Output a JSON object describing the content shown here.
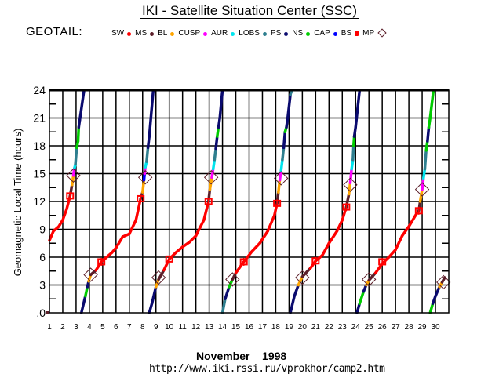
{
  "header": {
    "title": "IKI - Satellite Situation Center (SSC)",
    "satellite_label": "GEOTAIL:"
  },
  "legend": [
    {
      "label": "SW",
      "color": "#ff0000",
      "marker": "dot"
    },
    {
      "label": "MS",
      "color": "#5c1f2a",
      "marker": "dot"
    },
    {
      "label": "BL",
      "color": "#ffa500",
      "marker": "dot"
    },
    {
      "label": "CUSP",
      "color": "#ff00ff",
      "marker": "dot"
    },
    {
      "label": "AUR",
      "color": "#00e5ee",
      "marker": "dot"
    },
    {
      "label": "LOBS",
      "color": "#2f7f8f",
      "marker": "dot"
    },
    {
      "label": "PS",
      "color": "#0a0a6e",
      "marker": "dot"
    },
    {
      "label": "NS",
      "color": "#00cc00",
      "marker": "dot"
    },
    {
      "label": "CAP",
      "color": "#0000ff",
      "marker": "dot"
    },
    {
      "label": "BS",
      "color": "#ff0000",
      "marker": "square-cross"
    },
    {
      "label": "MP",
      "color": "#5c1f2a",
      "marker": "diamond"
    }
  ],
  "footer": {
    "month": "November",
    "year": "1998",
    "url": "http://www.iki.rssi.ru/vprokhor/camp2.htm"
  },
  "chart_data": {
    "type": "line",
    "title": "IKI - Satellite Situation Center (SSC)",
    "xlabel": "November 1998",
    "ylabel": "Geomagnetic Local Time (hours)",
    "xlim": [
      1,
      31
    ],
    "ylim": [
      0,
      24
    ],
    "x_ticks": [
      "1",
      "2",
      "3",
      "4",
      "5",
      "6",
      "7",
      "8",
      "9",
      "10",
      "11",
      "12",
      "13",
      "14",
      "15",
      "16",
      "17",
      "18",
      "19",
      "20",
      "21",
      "22",
      "23",
      "24",
      "25",
      "26",
      "27",
      "28",
      "29",
      "30"
    ],
    "y_ticks": [
      ".0",
      "3",
      "6",
      "9",
      "12",
      "15",
      "18",
      "21",
      "24"
    ],
    "y_tick_values": [
      0,
      3,
      6,
      9,
      12,
      15,
      18,
      21,
      24
    ],
    "grid": true,
    "legend_position": "top",
    "orbits": [
      {
        "name": "orbit-1",
        "path": [
          [
            1.0,
            7.8,
            "SW"
          ],
          [
            1.3,
            8.8,
            "SW"
          ],
          [
            1.7,
            9.3,
            "SW"
          ],
          [
            2.0,
            10.0,
            "SW"
          ],
          [
            2.3,
            11.2,
            "SW"
          ],
          [
            2.55,
            12.6,
            "SW"
          ],
          [
            2.7,
            13.8,
            "MS"
          ],
          [
            2.8,
            14.8,
            "BL"
          ],
          [
            2.88,
            15.6,
            "CUSP"
          ],
          [
            2.95,
            16.0,
            "AUR"
          ],
          [
            3.05,
            17.8,
            "LOBS"
          ],
          [
            3.15,
            18.5,
            "NS"
          ],
          [
            3.2,
            20.0,
            "NS"
          ],
          [
            3.28,
            20.8,
            "PS"
          ],
          [
            3.6,
            24.0,
            "PS"
          ]
        ],
        "bs": [
          [
            2.55,
            12.6
          ]
        ],
        "mp": [
          [
            2.8,
            14.8
          ]
        ]
      },
      {
        "name": "orbit-1b",
        "path": [
          [
            3.4,
            0.0,
            "PS"
          ],
          [
            3.7,
            1.8,
            "PS"
          ],
          [
            3.85,
            2.8,
            "NS"
          ],
          [
            3.95,
            3.4,
            "PS"
          ],
          [
            4.1,
            4.1,
            "BL"
          ],
          [
            4.5,
            4.6,
            "MS"
          ],
          [
            4.9,
            5.5,
            "SW"
          ],
          [
            5.3,
            6.0,
            "SW"
          ],
          [
            5.7,
            6.5,
            "SW"
          ],
          [
            6.0,
            7.0,
            "SW"
          ],
          [
            6.5,
            8.2,
            "SW"
          ],
          [
            7.0,
            8.5,
            "SW"
          ],
          [
            7.5,
            10.0,
            "SW"
          ],
          [
            7.85,
            12.3,
            "SW"
          ],
          [
            8.0,
            13.0,
            "MS"
          ],
          [
            8.1,
            14.3,
            "BL"
          ],
          [
            8.15,
            15.0,
            "CAP"
          ],
          [
            8.2,
            15.7,
            "CUSP"
          ],
          [
            8.3,
            16.3,
            "AUR"
          ],
          [
            8.4,
            17.8,
            "LOBS"
          ],
          [
            8.5,
            19.0,
            "PS"
          ],
          [
            8.8,
            24.0,
            "PS"
          ]
        ],
        "bs": [
          [
            4.9,
            5.5
          ],
          [
            7.85,
            12.3
          ]
        ],
        "mp": [
          [
            4.1,
            4.1
          ],
          [
            8.2,
            14.6
          ]
        ]
      },
      {
        "name": "orbit-2b",
        "path": [
          [
            8.5,
            0.0,
            "NS"
          ],
          [
            8.7,
            1.0,
            "PS"
          ],
          [
            9.0,
            2.8,
            "PS"
          ],
          [
            9.2,
            3.6,
            "BL"
          ],
          [
            9.6,
            4.6,
            "MS"
          ],
          [
            10.0,
            5.8,
            "SW"
          ],
          [
            10.5,
            6.5,
            "SW"
          ],
          [
            11.0,
            7.1,
            "SW"
          ],
          [
            11.5,
            7.6,
            "SW"
          ],
          [
            12.0,
            8.3,
            "SW"
          ],
          [
            12.6,
            10.0,
            "SW"
          ],
          [
            12.95,
            12.0,
            "SW"
          ],
          [
            13.05,
            13.3,
            "MS"
          ],
          [
            13.2,
            14.6,
            "BL"
          ],
          [
            13.3,
            15.5,
            "CUSP"
          ],
          [
            13.4,
            16.5,
            "AUR"
          ],
          [
            13.5,
            17.7,
            "LOBS"
          ],
          [
            13.6,
            19.0,
            "PS"
          ],
          [
            13.7,
            20.0,
            "NS"
          ],
          [
            13.8,
            21.0,
            "PS"
          ],
          [
            14.0,
            24.0,
            "PS"
          ]
        ],
        "bs": [
          [
            10.0,
            5.8
          ],
          [
            12.95,
            12.0
          ]
        ],
        "mp": [
          [
            9.2,
            3.8
          ],
          [
            13.15,
            14.6
          ]
        ]
      },
      {
        "name": "orbit-3b",
        "path": [
          [
            14.0,
            0.0,
            "LOBS"
          ],
          [
            14.2,
            1.5,
            "LOBS"
          ],
          [
            14.5,
            2.8,
            "PS"
          ],
          [
            14.75,
            3.6,
            "NS"
          ],
          [
            15.0,
            4.3,
            "MS"
          ],
          [
            15.6,
            5.5,
            "SW"
          ],
          [
            16.2,
            6.6,
            "SW"
          ],
          [
            16.8,
            7.5,
            "SW"
          ],
          [
            17.4,
            8.8,
            "SW"
          ],
          [
            17.9,
            10.5,
            "SW"
          ],
          [
            18.1,
            11.8,
            "SW"
          ],
          [
            18.2,
            13.0,
            "MS"
          ],
          [
            18.3,
            14.3,
            "BL"
          ],
          [
            18.4,
            15.3,
            "CUSP"
          ],
          [
            18.5,
            16.5,
            "AUR"
          ],
          [
            18.6,
            17.8,
            "LOBS"
          ],
          [
            18.7,
            19.5,
            "PS"
          ],
          [
            18.8,
            20.0,
            "NS"
          ],
          [
            18.9,
            21.0,
            "PS"
          ],
          [
            19.1,
            23.5,
            "PS"
          ],
          [
            19.2,
            24.0,
            "LOBS"
          ]
        ],
        "bs": [
          [
            15.6,
            5.5
          ],
          [
            18.1,
            11.8
          ]
        ],
        "mp": [
          [
            14.75,
            3.6
          ],
          [
            18.4,
            14.5
          ]
        ]
      },
      {
        "name": "orbit-4b",
        "path": [
          [
            19.1,
            0.0,
            "LOBS"
          ],
          [
            19.4,
            1.8,
            "PS"
          ],
          [
            19.7,
            3.0,
            "PS"
          ],
          [
            20.0,
            3.9,
            "BL"
          ],
          [
            20.6,
            4.8,
            "MS"
          ],
          [
            21.0,
            5.6,
            "SW"
          ],
          [
            21.5,
            6.2,
            "SW"
          ],
          [
            22.0,
            7.5,
            "SW"
          ],
          [
            22.6,
            8.8,
            "SW"
          ],
          [
            23.0,
            10.0,
            "SW"
          ],
          [
            23.3,
            11.4,
            "SW"
          ],
          [
            23.5,
            12.8,
            "MS"
          ],
          [
            23.6,
            14.0,
            "BL"
          ],
          [
            23.7,
            15.5,
            "CUSP"
          ],
          [
            23.8,
            16.5,
            "AUR"
          ],
          [
            23.85,
            18.0,
            "LOBS"
          ],
          [
            23.9,
            19.0,
            "NS"
          ],
          [
            24.0,
            20.0,
            "PS"
          ],
          [
            24.3,
            24.0,
            "PS"
          ]
        ],
        "bs": [
          [
            21.0,
            5.6
          ],
          [
            23.3,
            11.4
          ]
        ],
        "mp": [
          [
            20.0,
            3.8
          ],
          [
            23.6,
            13.8
          ]
        ]
      },
      {
        "name": "orbit-5b",
        "path": [
          [
            24.1,
            0.0,
            "PS"
          ],
          [
            24.3,
            1.0,
            "PS"
          ],
          [
            24.6,
            2.3,
            "NS"
          ],
          [
            24.8,
            3.0,
            "PS"
          ],
          [
            25.0,
            3.5,
            "BL"
          ],
          [
            25.5,
            4.3,
            "MS"
          ],
          [
            26.0,
            5.3,
            "SW"
          ],
          [
            26.5,
            6.0,
            "SW"
          ],
          [
            27.0,
            6.8,
            "SW"
          ],
          [
            27.5,
            8.3,
            "SW"
          ],
          [
            28.0,
            9.3,
            "SW"
          ],
          [
            28.5,
            10.5,
            "SW"
          ],
          [
            28.75,
            11.0,
            "SW"
          ],
          [
            28.85,
            12.0,
            "MS"
          ],
          [
            29.0,
            13.3,
            "BL"
          ],
          [
            29.1,
            14.5,
            "CUSP"
          ],
          [
            29.2,
            15.5,
            "AUR"
          ],
          [
            29.3,
            17.5,
            "LOBS"
          ],
          [
            29.4,
            18.5,
            "NS"
          ],
          [
            29.5,
            20.0,
            "PS"
          ],
          [
            29.6,
            21.0,
            "NS"
          ],
          [
            29.85,
            24.0,
            "NS"
          ]
        ],
        "bs": [
          [
            26.0,
            5.5
          ],
          [
            28.75,
            11.0
          ]
        ],
        "mp": [
          [
            25.0,
            3.6
          ],
          [
            29.0,
            13.3
          ]
        ]
      },
      {
        "name": "orbit-6b",
        "path": [
          [
            29.6,
            0.0,
            "NS"
          ],
          [
            29.8,
            1.0,
            "NS"
          ],
          [
            30.0,
            1.8,
            "PS"
          ],
          [
            30.3,
            2.8,
            "PS"
          ],
          [
            30.5,
            3.3,
            "BL"
          ],
          [
            30.7,
            3.8,
            "MS"
          ]
        ],
        "bs": [],
        "mp": [
          [
            30.6,
            3.3
          ]
        ]
      }
    ]
  }
}
